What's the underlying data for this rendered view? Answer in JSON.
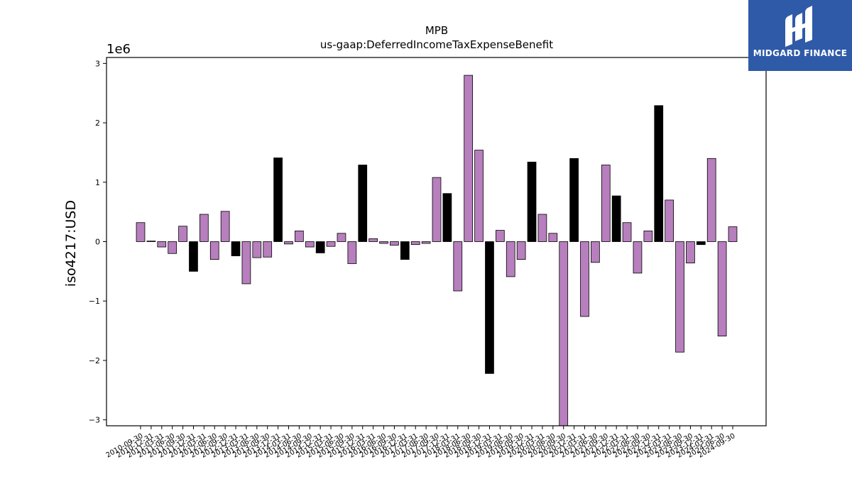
{
  "brand": {
    "name": "MIDGARD FINANCE",
    "logo_icon": "midgard-logo-icon",
    "background_color": "#2f5aa8"
  },
  "chart_data": {
    "type": "bar",
    "title": "MPB",
    "subtitle": "us-gaap:DeferredIncomeTaxExpenseBenefit",
    "ylabel": "iso4217:USD",
    "xlabel": "",
    "offset_label": "1e6",
    "ylim": [
      -3.1,
      3.1
    ],
    "yticks": [
      -3,
      -2,
      -1,
      0,
      1,
      2,
      3
    ],
    "ytick_labels": [
      "−3",
      "−2",
      "−1",
      "0",
      "1",
      "2",
      "3"
    ],
    "grid": false,
    "colors": {
      "quarter": "#b77fbd",
      "annual": "#000000",
      "edge": "#000000"
    },
    "categories": [
      "2010-09-30",
      "2010-12-31",
      "2011-03-31",
      "2011-06-30",
      "2011-09-30",
      "2011-12-31",
      "2012-03-31",
      "2012-06-30",
      "2012-09-30",
      "2012-12-31",
      "2013-03-31",
      "2013-06-30",
      "2013-09-30",
      "2013-12-31",
      "2014-03-31",
      "2014-06-30",
      "2014-09-30",
      "2014-12-31",
      "2015-03-31",
      "2015-06-30",
      "2015-09-30",
      "2015-12-31",
      "2016-03-31",
      "2016-06-30",
      "2016-09-30",
      "2016-12-31",
      "2017-03-31",
      "2017-06-30",
      "2017-09-30",
      "2017-12-31",
      "2018-03-31",
      "2018-06-30",
      "2018-09-30",
      "2018-12-31",
      "2019-03-31",
      "2019-06-30",
      "2019-09-30",
      "2019-12-31",
      "2020-03-31",
      "2020-06-30",
      "2020-09-30",
      "2020-12-31",
      "2021-03-31",
      "2021-06-30",
      "2021-09-30",
      "2021-12-31",
      "2022-03-31",
      "2022-06-30",
      "2022-09-30",
      "2022-12-31",
      "2023-03-31",
      "2023-06-30",
      "2023-09-30",
      "2023-12-31",
      "2024-03-31",
      "2024-06-30",
      "2024-09-30"
    ],
    "values": [
      0.32,
      0.01,
      -0.09,
      -0.2,
      0.26,
      -0.5,
      0.46,
      -0.3,
      0.51,
      -0.24,
      -0.71,
      -0.27,
      -0.26,
      1.41,
      -0.04,
      0.18,
      -0.09,
      -0.19,
      -0.08,
      0.14,
      -0.37,
      1.29,
      0.05,
      -0.03,
      -0.06,
      -0.3,
      -0.05,
      -0.03,
      1.08,
      0.81,
      -0.83,
      2.8,
      1.54,
      -2.22,
      0.19,
      -0.59,
      -0.3,
      1.34,
      0.46,
      0.14,
      -3.12,
      1.4,
      -1.26,
      -0.35,
      1.29,
      0.77,
      0.32,
      -0.53,
      0.18,
      2.29,
      0.7,
      -1.86,
      -0.36,
      -0.05,
      1.4,
      -1.59,
      0.25
    ],
    "annual": [
      false,
      false,
      false,
      false,
      false,
      true,
      false,
      false,
      false,
      true,
      false,
      false,
      false,
      true,
      false,
      false,
      false,
      true,
      false,
      false,
      false,
      true,
      false,
      false,
      false,
      true,
      false,
      false,
      false,
      true,
      false,
      false,
      false,
      true,
      false,
      false,
      false,
      true,
      false,
      false,
      false,
      true,
      false,
      false,
      false,
      true,
      false,
      false,
      false,
      true,
      false,
      false,
      false,
      true,
      false,
      false,
      false
    ]
  }
}
